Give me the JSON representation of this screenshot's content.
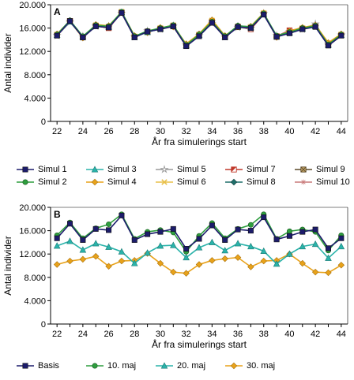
{
  "chart_data": [
    {
      "type": "line",
      "panel_label": "A",
      "xlabel": "År fra simulerings start",
      "ylabel": "Antal individer",
      "ylim": [
        0,
        20000
      ],
      "xlim": [
        21.5,
        44.5
      ],
      "yticks": [
        0,
        4000,
        8000,
        12000,
        16000,
        20000
      ],
      "ytick_labels": [
        "0",
        "4.000",
        "8.000",
        "12.000",
        "16.000",
        "20.000"
      ],
      "xticks": [
        22,
        24,
        26,
        28,
        30,
        32,
        34,
        36,
        38,
        40,
        42,
        44
      ],
      "x": [
        22,
        23,
        24,
        25,
        26,
        27,
        28,
        29,
        30,
        31,
        32,
        33,
        34,
        35,
        36,
        37,
        38,
        39,
        40,
        41,
        42,
        43,
        44
      ],
      "series": [
        {
          "name": "Simul 1",
          "color": "#1c1c6b",
          "marker": "square",
          "values": [
            14700,
            17200,
            14400,
            16300,
            16100,
            18600,
            14400,
            15400,
            15800,
            16300,
            12900,
            14600,
            16900,
            14400,
            16200,
            16000,
            18300,
            14500,
            15100,
            15800,
            16200,
            13000,
            14700
          ]
        },
        {
          "name": "Simul 2",
          "color": "#2e9e3e",
          "marker": "circle",
          "values": [
            14900,
            17300,
            14600,
            16500,
            16300,
            18800,
            14600,
            15500,
            16000,
            16500,
            13100,
            14900,
            17100,
            14600,
            16400,
            16200,
            18500,
            14700,
            15300,
            16000,
            16400,
            13200,
            14900
          ]
        },
        {
          "name": "Simul 3",
          "color": "#2ab3aa",
          "marker": "triangle",
          "values": [
            14800,
            17100,
            14500,
            16400,
            16200,
            18700,
            14500,
            15300,
            15900,
            16400,
            13000,
            14800,
            17000,
            14500,
            16300,
            16100,
            18400,
            14600,
            15200,
            15900,
            16300,
            13100,
            14800
          ]
        },
        {
          "name": "Simul 4",
          "color": "#e8a21a",
          "marker": "diamond",
          "values": [
            15000,
            17200,
            14300,
            16600,
            16400,
            18700,
            14700,
            15200,
            16100,
            16200,
            13300,
            15000,
            17400,
            14700,
            16200,
            16300,
            18600,
            14400,
            15500,
            16100,
            16500,
            13500,
            15000
          ]
        },
        {
          "name": "Simul 5",
          "color": "#9a9a9a",
          "marker": "star",
          "values": [
            14700,
            17000,
            14600,
            16300,
            16300,
            18500,
            14500,
            15500,
            15800,
            16400,
            13100,
            14700,
            16800,
            14500,
            16100,
            15900,
            18500,
            14700,
            15400,
            15800,
            16700,
            13200,
            14800
          ]
        },
        {
          "name": "Simul 6",
          "color": "#e8c04a",
          "marker": "x",
          "values": [
            14900,
            17100,
            14400,
            16500,
            16200,
            18800,
            14600,
            15300,
            16000,
            16500,
            13200,
            14900,
            17300,
            14600,
            16300,
            16200,
            18600,
            14500,
            15300,
            16000,
            16400,
            13300,
            14900
          ]
        },
        {
          "name": "Simul 7",
          "color": "#c0392b",
          "marker": "half-square",
          "values": [
            14800,
            17200,
            14500,
            16400,
            16000,
            18700,
            14500,
            15400,
            15900,
            16300,
            13000,
            14800,
            17100,
            14500,
            16200,
            15800,
            18400,
            14600,
            15600,
            15900,
            16300,
            13100,
            14800
          ]
        },
        {
          "name": "Simul 8",
          "color": "#1f6e6a",
          "marker": "diamond-filled",
          "values": [
            14900,
            17300,
            14500,
            16500,
            16300,
            18700,
            14600,
            15400,
            16000,
            16400,
            13100,
            14900,
            17200,
            14600,
            16400,
            16200,
            18500,
            14600,
            15300,
            16000,
            16400,
            13200,
            14900
          ]
        },
        {
          "name": "Simul 9",
          "color": "#5c4a2a",
          "marker": "x-square",
          "values": [
            14800,
            17200,
            14400,
            16400,
            16200,
            18600,
            14500,
            15300,
            15900,
            16300,
            13000,
            14800,
            17000,
            14500,
            16200,
            16100,
            18400,
            14500,
            15200,
            15900,
            16300,
            13100,
            14800
          ]
        },
        {
          "name": "Simul 10",
          "color": "#c97a7a",
          "marker": "cross",
          "values": [
            14700,
            17100,
            14500,
            16300,
            16100,
            18600,
            14400,
            15400,
            15800,
            16300,
            12900,
            14700,
            16900,
            14400,
            16200,
            16000,
            18300,
            14600,
            15400,
            15800,
            16600,
            13000,
            14700
          ]
        }
      ]
    },
    {
      "type": "line",
      "panel_label": "B",
      "xlabel": "År fra simulerings start",
      "ylabel": "Antal individer",
      "ylim": [
        0,
        20000
      ],
      "xlim": [
        21.5,
        44.5
      ],
      "yticks": [
        0,
        4000,
        8000,
        12000,
        16000,
        20000
      ],
      "ytick_labels": [
        "0",
        "4.000",
        "8.000",
        "12.000",
        "16.000",
        "20.000"
      ],
      "xticks": [
        22,
        24,
        26,
        28,
        30,
        32,
        34,
        36,
        38,
        40,
        42,
        44
      ],
      "x": [
        22,
        23,
        24,
        25,
        26,
        27,
        28,
        29,
        30,
        31,
        32,
        33,
        34,
        35,
        36,
        37,
        38,
        39,
        40,
        41,
        42,
        43,
        44
      ],
      "series": [
        {
          "name": "Basis",
          "color": "#1c1c6b",
          "marker": "square",
          "values": [
            14700,
            17200,
            14400,
            16300,
            16100,
            18600,
            14400,
            15400,
            15800,
            16300,
            12900,
            14600,
            16900,
            14400,
            16200,
            16000,
            18300,
            14500,
            15100,
            15800,
            16200,
            13000,
            14700
          ]
        },
        {
          "name": "10. maj",
          "color": "#2e9e3e",
          "marker": "circle",
          "values": [
            15200,
            17400,
            14700,
            16400,
            17100,
            18800,
            14600,
            15800,
            16100,
            15700,
            12400,
            15100,
            17300,
            14700,
            16300,
            17000,
            18800,
            14600,
            15900,
            16200,
            15800,
            12600,
            15200
          ]
        },
        {
          "name": "20. maj",
          "color": "#2ab3aa",
          "marker": "triangle",
          "values": [
            13400,
            14200,
            12700,
            13800,
            13200,
            12400,
            10400,
            12200,
            13400,
            13500,
            11400,
            13100,
            14000,
            12600,
            13800,
            13300,
            12500,
            10300,
            12000,
            13300,
            13700,
            11300,
            13300
          ]
        },
        {
          "name": "30. maj",
          "color": "#e8a21a",
          "marker": "diamond",
          "values": [
            10200,
            10800,
            11100,
            11600,
            9900,
            10800,
            10900,
            12100,
            10400,
            8900,
            8700,
            10200,
            10900,
            11200,
            11400,
            9800,
            10800,
            10900,
            12000,
            10400,
            8900,
            8800,
            10100
          ]
        }
      ]
    }
  ]
}
